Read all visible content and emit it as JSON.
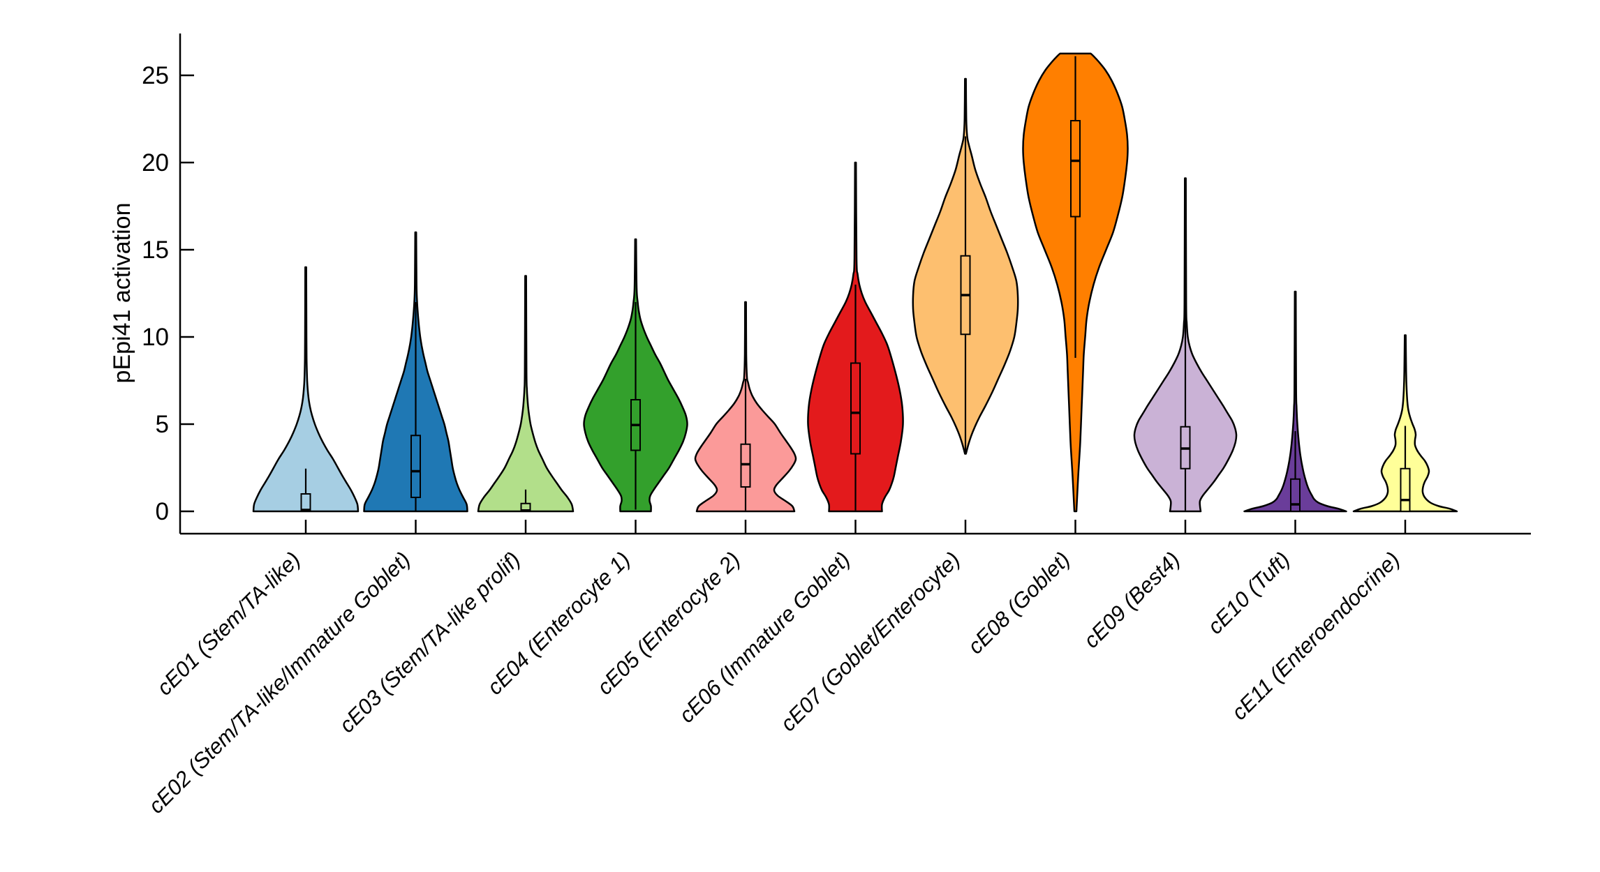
{
  "figure": {
    "background": "#ffffff"
  },
  "chart_data": {
    "type": "violin",
    "title": "",
    "ylabel": "pEpi41 activation",
    "xlabel": "",
    "yticks": [
      0,
      5,
      10,
      15,
      20,
      25
    ],
    "ylim": [
      0,
      27.5
    ],
    "grid": false,
    "legend": "none",
    "categories": [
      "cE01 (Stem/TA-like)",
      "cE02 (Stem/TA-like/Immature Goblet)",
      "cE03 (Stem/TA-like prolif)",
      "cE04 (Enterocyte 1)",
      "cE05 (Enterocyte 2)",
      "cE06 (Immature Goblet)",
      "cE07 (Goblet/Enterocyte)",
      "cE08 (Goblet)",
      "cE09 (Best4)",
      "cE10 (Tuft)",
      "cE11 (Enteroendocrine)"
    ],
    "series": [
      {
        "name": "cE01 (Stem/TA-like)",
        "color": "#a6cee3",
        "stats": {
          "min": 0,
          "max": 14,
          "median": 0.08,
          "q1": 0,
          "q3": 1.0,
          "whisker_low": 0,
          "whisker_high": 2.45
        },
        "profile": [
          [
            0,
            75
          ],
          [
            0.4,
            74
          ],
          [
            0.8,
            70
          ],
          [
            1.2,
            65
          ],
          [
            1.6,
            59
          ],
          [
            2,
            53
          ],
          [
            2.5,
            46
          ],
          [
            3,
            39
          ],
          [
            3.5,
            31
          ],
          [
            4,
            24
          ],
          [
            4.5,
            18
          ],
          [
            5,
            13
          ],
          [
            5.5,
            9
          ],
          [
            6,
            6
          ],
          [
            6.5,
            4
          ],
          [
            7,
            2.8
          ],
          [
            7.5,
            2
          ],
          [
            8.5,
            1.3
          ],
          [
            10,
            1
          ],
          [
            14,
            0.7
          ]
        ]
      },
      {
        "name": "cE02 (Stem/TA-like/Immature Goblet)",
        "color": "#1f78b4",
        "stats": {
          "min": 0,
          "max": 16,
          "median": 2.3,
          "q1": 0.8,
          "q3": 4.35,
          "whisker_low": 0,
          "whisker_high": 12
        },
        "profile": [
          [
            0,
            74
          ],
          [
            0.4,
            73
          ],
          [
            0.8,
            68
          ],
          [
            1.2,
            63
          ],
          [
            1.6,
            59
          ],
          [
            2,
            56
          ],
          [
            2.5,
            53
          ],
          [
            3,
            51
          ],
          [
            3.5,
            49
          ],
          [
            4,
            47
          ],
          [
            4.5,
            44
          ],
          [
            5,
            41
          ],
          [
            5.5,
            37
          ],
          [
            6,
            33
          ],
          [
            6.5,
            29
          ],
          [
            7,
            25
          ],
          [
            7.5,
            21
          ],
          [
            8,
            17
          ],
          [
            8.5,
            14
          ],
          [
            9,
            11
          ],
          [
            9.5,
            8.5
          ],
          [
            10,
            6.5
          ],
          [
            10.5,
            5
          ],
          [
            11,
            3.8
          ],
          [
            11.5,
            2.8
          ],
          [
            12,
            2
          ],
          [
            13,
            1.2
          ],
          [
            16,
            0.7
          ]
        ]
      },
      {
        "name": "cE03 (Stem/TA-like prolif)",
        "color": "#b2df8a",
        "stats": {
          "min": 0,
          "max": 13.5,
          "median": 0.05,
          "q1": 0,
          "q3": 0.45,
          "whisker_low": 0,
          "whisker_high": 1.25
        },
        "profile": [
          [
            0,
            68
          ],
          [
            0.4,
            66
          ],
          [
            0.8,
            60
          ],
          [
            1.2,
            52
          ],
          [
            1.6,
            45
          ],
          [
            2,
            38
          ],
          [
            2.5,
            30
          ],
          [
            3,
            24
          ],
          [
            3.5,
            18
          ],
          [
            4,
            13.5
          ],
          [
            4.5,
            10
          ],
          [
            5,
            7
          ],
          [
            5.5,
            5
          ],
          [
            6,
            3.5
          ],
          [
            6.5,
            2.5
          ],
          [
            7,
            1.8
          ],
          [
            8,
            1.2
          ],
          [
            13.5,
            0.7
          ]
        ]
      },
      {
        "name": "cE04 (Enterocyte 1)",
        "color": "#33a02c",
        "stats": {
          "min": 0,
          "max": 15.6,
          "median": 4.95,
          "q1": 3.5,
          "q3": 6.4,
          "whisker_low": 0.1,
          "whisker_high": 12
        },
        "profile": [
          [
            0,
            22
          ],
          [
            0.3,
            22
          ],
          [
            0.6,
            20
          ],
          [
            0.9,
            21
          ],
          [
            1.3,
            27
          ],
          [
            1.7,
            34
          ],
          [
            2.1,
            41
          ],
          [
            2.5,
            48
          ],
          [
            3,
            55
          ],
          [
            3.5,
            62
          ],
          [
            4,
            68
          ],
          [
            4.5,
            72
          ],
          [
            5,
            74
          ],
          [
            5.5,
            72
          ],
          [
            6,
            67
          ],
          [
            6.5,
            61
          ],
          [
            7,
            54
          ],
          [
            7.5,
            47
          ],
          [
            8,
            41
          ],
          [
            8.5,
            35
          ],
          [
            9,
            28
          ],
          [
            9.5,
            22
          ],
          [
            10,
            16
          ],
          [
            10.5,
            11
          ],
          [
            11,
            7
          ],
          [
            11.5,
            4.5
          ],
          [
            12,
            3
          ],
          [
            12.8,
            1.5
          ],
          [
            15.6,
            0.7
          ]
        ]
      },
      {
        "name": "cE05 (Enterocyte 2)",
        "color": "#fb9a99",
        "stats": {
          "min": 0,
          "max": 12,
          "median": 2.7,
          "q1": 1.4,
          "q3": 3.85,
          "whisker_low": 0.05,
          "whisker_high": 7.6
        },
        "profile": [
          [
            0,
            70
          ],
          [
            0.3,
            67
          ],
          [
            0.6,
            57
          ],
          [
            0.9,
            46
          ],
          [
            1.2,
            41
          ],
          [
            1.5,
            44
          ],
          [
            1.9,
            53
          ],
          [
            2.3,
            62
          ],
          [
            2.7,
            69
          ],
          [
            3,
            72
          ],
          [
            3.3,
            70
          ],
          [
            3.7,
            64
          ],
          [
            4.1,
            57
          ],
          [
            4.5,
            50
          ],
          [
            5,
            42
          ],
          [
            5.4,
            33
          ],
          [
            5.8,
            24
          ],
          [
            6.2,
            16
          ],
          [
            6.6,
            10
          ],
          [
            7,
            6
          ],
          [
            7.4,
            3.5
          ],
          [
            7.7,
            2
          ],
          [
            9,
            1
          ],
          [
            12,
            0.7
          ]
        ]
      },
      {
        "name": "cE06 (Immature Goblet)",
        "color": "#e31a1c",
        "stats": {
          "min": 0,
          "max": 20,
          "median": 5.65,
          "q1": 3.3,
          "q3": 8.5,
          "whisker_low": 0.05,
          "whisker_high": 13
        },
        "profile": [
          [
            0,
            38
          ],
          [
            0.4,
            38
          ],
          [
            0.8,
            42
          ],
          [
            1.2,
            48
          ],
          [
            1.6,
            52
          ],
          [
            2,
            55
          ],
          [
            2.6,
            58
          ],
          [
            3.2,
            61
          ],
          [
            4,
            65
          ],
          [
            5,
            68
          ],
          [
            6,
            67
          ],
          [
            7,
            63
          ],
          [
            8,
            57
          ],
          [
            9,
            50
          ],
          [
            9.6,
            45
          ],
          [
            10.2,
            38
          ],
          [
            10.8,
            30
          ],
          [
            11.4,
            22
          ],
          [
            12,
            14
          ],
          [
            12.5,
            9
          ],
          [
            13,
            5.5
          ],
          [
            13.6,
            3
          ],
          [
            14.5,
            1.5
          ],
          [
            20,
            0.7
          ]
        ]
      },
      {
        "name": "cE07 (Goblet/Enterocyte)",
        "color": "#fdbf6f",
        "stats": {
          "min": 3.3,
          "max": 24.8,
          "median": 12.4,
          "q1": 10.15,
          "q3": 14.65,
          "whisker_low": 3.3,
          "whisker_high": 21.5
        },
        "profile": [
          [
            3.3,
            0.7
          ],
          [
            3.8,
            4
          ],
          [
            4.3,
            8
          ],
          [
            4.8,
            13
          ],
          [
            5.4,
            20
          ],
          [
            6,
            28
          ],
          [
            6.8,
            38
          ],
          [
            7.6,
            47
          ],
          [
            8.4,
            56
          ],
          [
            9.2,
            64
          ],
          [
            10,
            70
          ],
          [
            10.8,
            73
          ],
          [
            11.6,
            75
          ],
          [
            12.4,
            75
          ],
          [
            13.2,
            73
          ],
          [
            14,
            67
          ],
          [
            14.8,
            60
          ],
          [
            15.6,
            52
          ],
          [
            16.4,
            44
          ],
          [
            17.2,
            36
          ],
          [
            18,
            29
          ],
          [
            18.8,
            21
          ],
          [
            19.6,
            14
          ],
          [
            20.4,
            9
          ],
          [
            21,
            5
          ],
          [
            21.5,
            2.5
          ],
          [
            22.5,
            1.2
          ],
          [
            24.8,
            0.7
          ]
        ]
      },
      {
        "name": "cE08 (Goblet)",
        "color": "#ff7f00",
        "stats": {
          "min": 0,
          "max": 26.2,
          "median": 20.1,
          "q1": 16.9,
          "q3": 22.4,
          "whisker_low": 8.8,
          "whisker_high": 26.1
        },
        "profile": [
          [
            0,
            1.5
          ],
          [
            2,
            4
          ],
          [
            4,
            7
          ],
          [
            6,
            9
          ],
          [
            8,
            11
          ],
          [
            9,
            12
          ],
          [
            10,
            14
          ],
          [
            11,
            16
          ],
          [
            12,
            20
          ],
          [
            13,
            26
          ],
          [
            14,
            34
          ],
          [
            15,
            44
          ],
          [
            16,
            54
          ],
          [
            17,
            61
          ],
          [
            18,
            67
          ],
          [
            19,
            71
          ],
          [
            20,
            74
          ],
          [
            20.8,
            75
          ],
          [
            21.6,
            74
          ],
          [
            22.4,
            71
          ],
          [
            23.2,
            67
          ],
          [
            24,
            60
          ],
          [
            24.7,
            52
          ],
          [
            25.3,
            43
          ],
          [
            25.8,
            33
          ],
          [
            26.1,
            26
          ],
          [
            26.25,
            22
          ]
        ]
      },
      {
        "name": "cE09 (Best4)",
        "color": "#cab2d6",
        "stats": {
          "min": 0,
          "max": 19.1,
          "median": 3.6,
          "q1": 2.45,
          "q3": 4.85,
          "whisker_low": 0.05,
          "whisker_high": 19
        },
        "profile": [
          [
            0,
            22
          ],
          [
            0.3,
            21
          ],
          [
            0.6,
            21
          ],
          [
            0.9,
            25
          ],
          [
            1.3,
            33
          ],
          [
            1.7,
            41
          ],
          [
            2.1,
            48
          ],
          [
            2.5,
            55
          ],
          [
            3,
            62
          ],
          [
            3.5,
            68
          ],
          [
            4,
            72
          ],
          [
            4.4,
            73
          ],
          [
            4.8,
            71
          ],
          [
            5.2,
            67
          ],
          [
            5.6,
            61
          ],
          [
            6,
            55
          ],
          [
            6.5,
            47
          ],
          [
            7,
            39
          ],
          [
            7.5,
            31
          ],
          [
            8,
            23
          ],
          [
            8.5,
            16
          ],
          [
            9,
            10
          ],
          [
            9.5,
            6
          ],
          [
            10,
            3.5
          ],
          [
            10.8,
            2
          ],
          [
            12,
            1.2
          ],
          [
            19.1,
            0.7
          ]
        ]
      },
      {
        "name": "cE10 (Tuft)",
        "color": "#6a3d9a",
        "stats": {
          "min": 0,
          "max": 12.6,
          "median": 0.4,
          "q1": 0,
          "q3": 1.85,
          "whisker_low": 0,
          "whisker_high": 4.6
        },
        "profile": [
          [
            0,
            73
          ],
          [
            0.15,
            62
          ],
          [
            0.3,
            46
          ],
          [
            0.5,
            33
          ],
          [
            0.7,
            27
          ],
          [
            0.9,
            24
          ],
          [
            1.2,
            20
          ],
          [
            1.5,
            17
          ],
          [
            1.9,
            14
          ],
          [
            2.3,
            11.5
          ],
          [
            2.8,
            9
          ],
          [
            3.3,
            7
          ],
          [
            3.8,
            5.5
          ],
          [
            4.3,
            4.3
          ],
          [
            4.8,
            3.3
          ],
          [
            5.3,
            2.5
          ],
          [
            6,
            1.8
          ],
          [
            7,
            1.2
          ],
          [
            12.6,
            0.7
          ]
        ]
      },
      {
        "name": "cE11 (Enteroendocrine)",
        "color": "#ffff99",
        "stats": {
          "min": 0,
          "max": 10.1,
          "median": 0.65,
          "q1": 0,
          "q3": 2.45,
          "whisker_low": 0,
          "whisker_high": 4.9
        },
        "profile": [
          [
            0,
            74
          ],
          [
            0.15,
            64
          ],
          [
            0.3,
            48
          ],
          [
            0.5,
            36
          ],
          [
            0.8,
            28
          ],
          [
            1.1,
            25
          ],
          [
            1.4,
            25.5
          ],
          [
            1.7,
            28
          ],
          [
            2,
            32
          ],
          [
            2.3,
            34
          ],
          [
            2.6,
            32
          ],
          [
            2.9,
            28
          ],
          [
            3.2,
            22
          ],
          [
            3.5,
            17
          ],
          [
            3.8,
            14
          ],
          [
            4.1,
            14
          ],
          [
            4.4,
            15
          ],
          [
            4.7,
            13.5
          ],
          [
            5,
            10.5
          ],
          [
            5.4,
            7
          ],
          [
            5.8,
            4.5
          ],
          [
            6.3,
            3
          ],
          [
            7,
            2
          ],
          [
            8,
            1.3
          ],
          [
            10.1,
            0.7
          ]
        ]
      }
    ]
  }
}
